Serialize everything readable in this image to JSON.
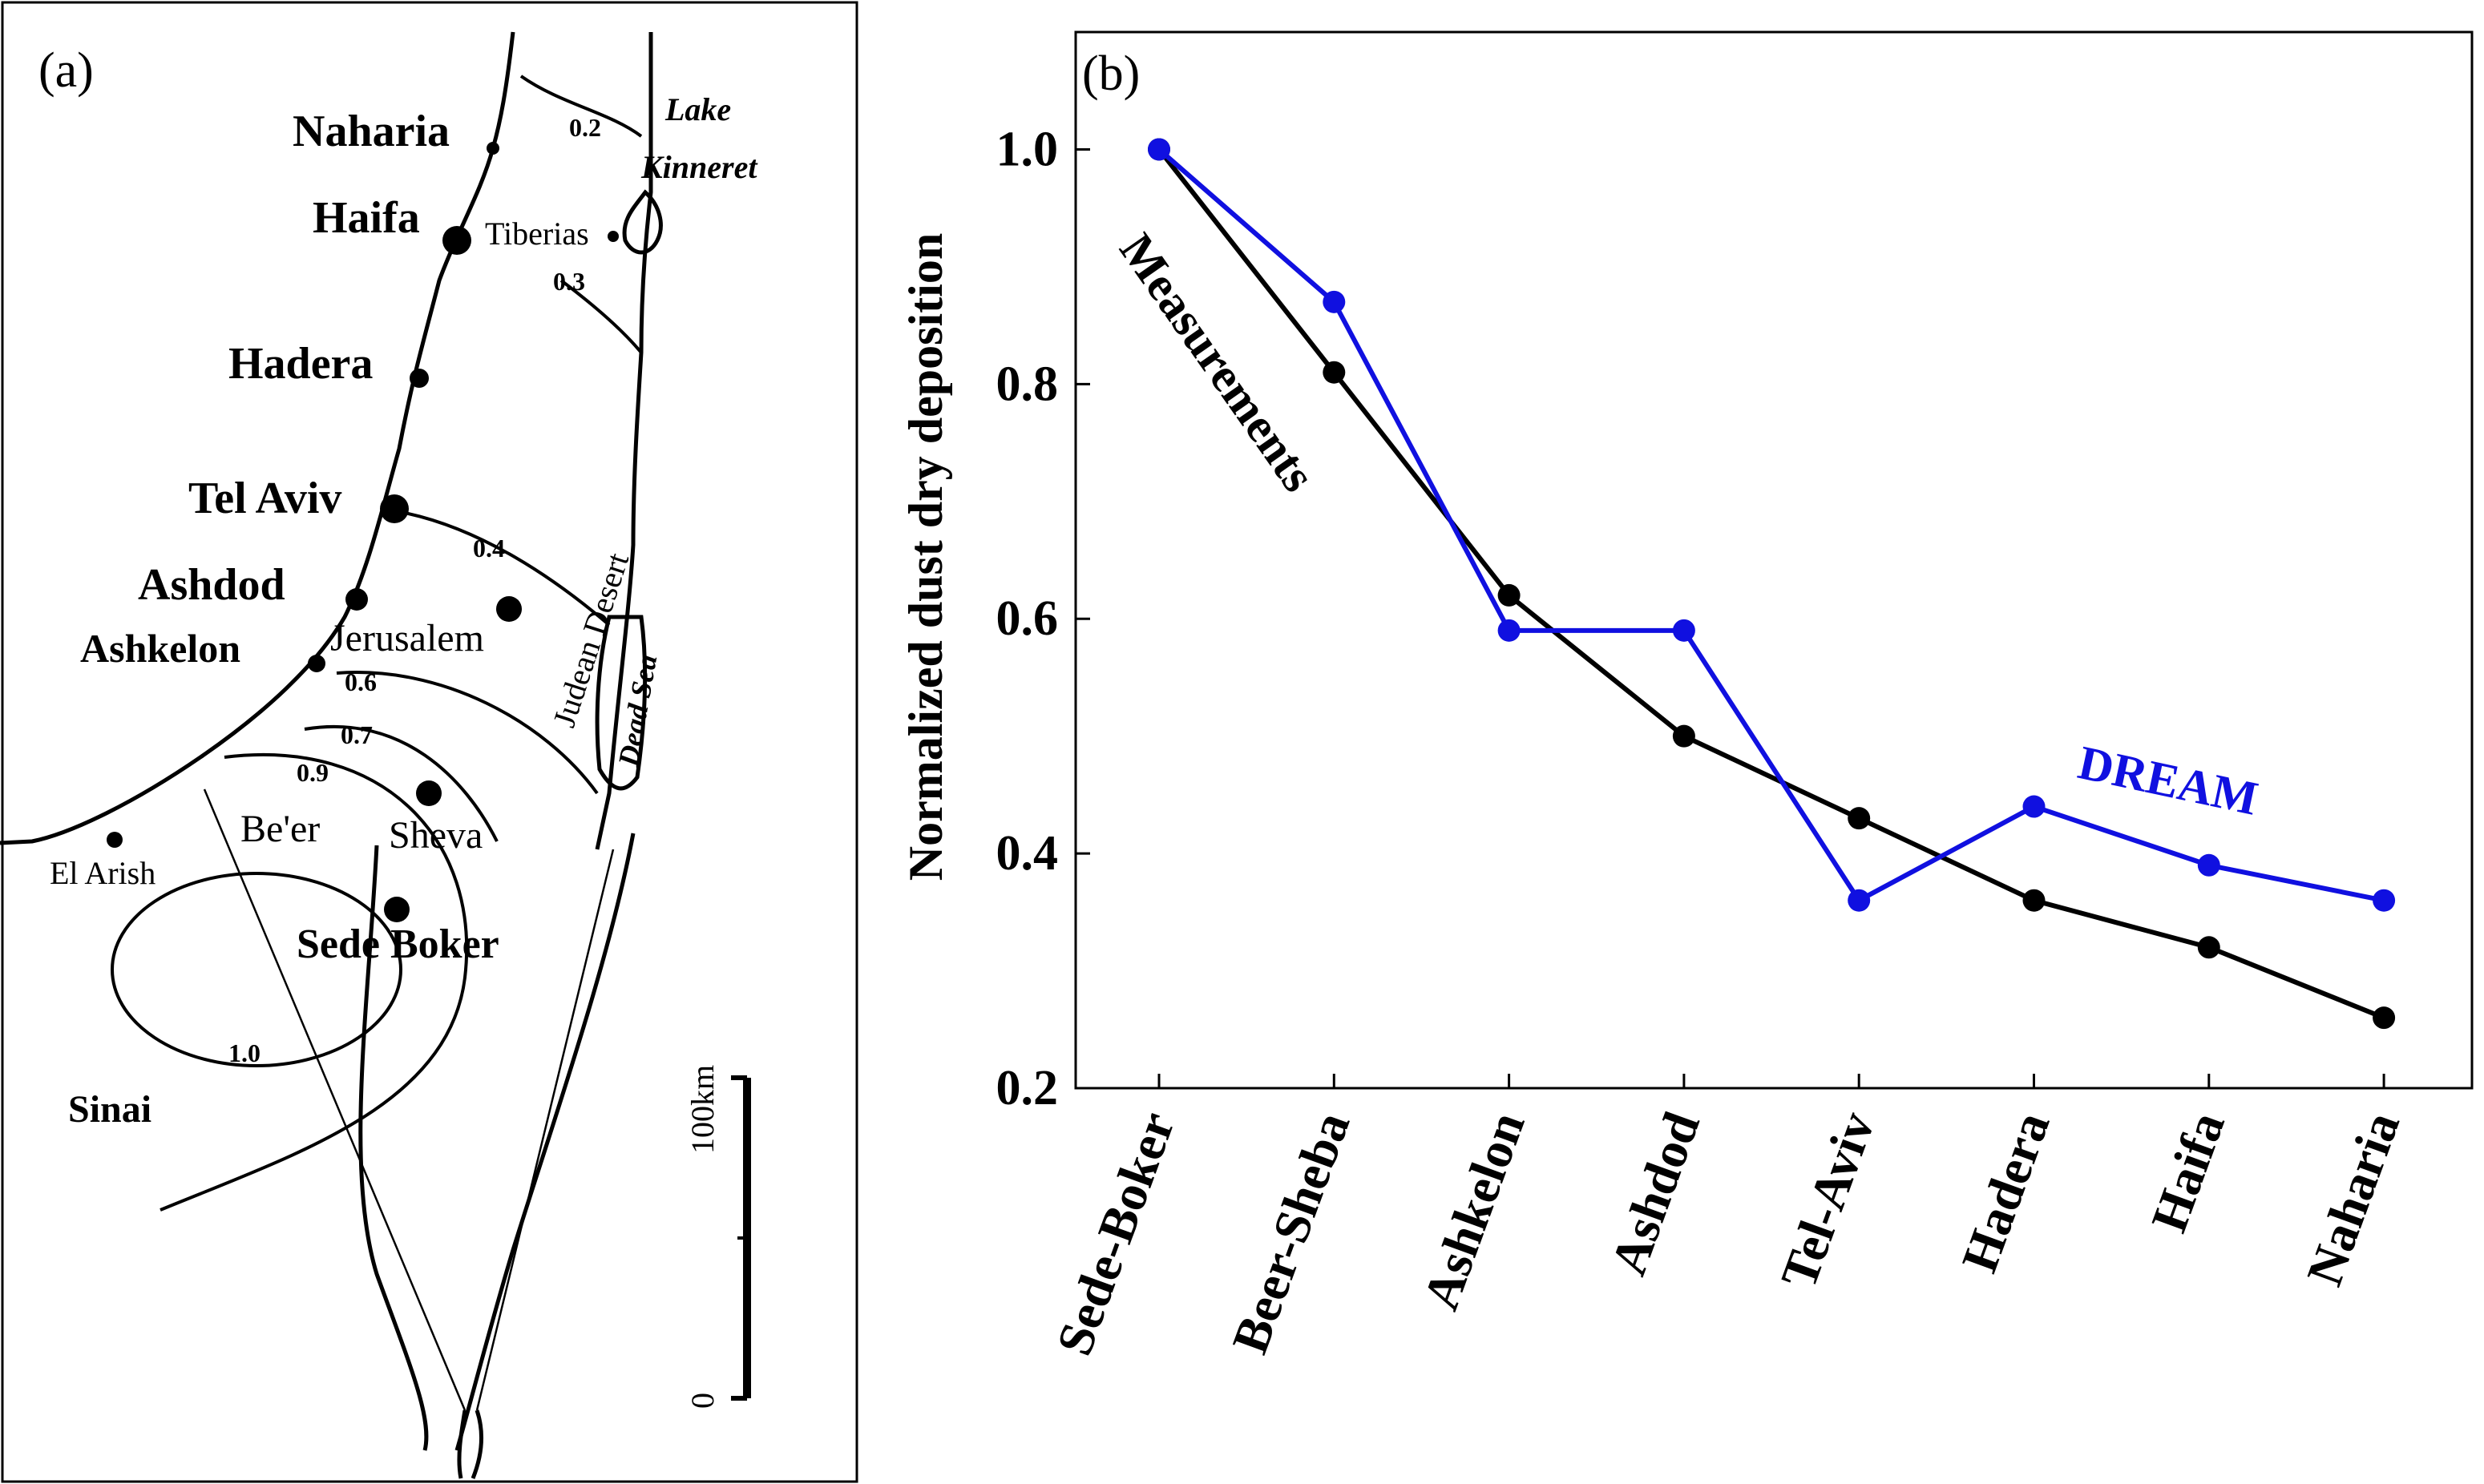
{
  "map": {
    "panel_label": "(a)",
    "cities": {
      "naharia": "Naharia",
      "haifa": "Haifa",
      "tiberias": "Tiberias",
      "hadera": "Hadera",
      "tel_aviv": "Tel Aviv",
      "ashdod": "Ashdod",
      "ashkelon": "Ashkelon",
      "jerusalem": "Jerusalem",
      "beer": "Be'er",
      "sheva": "Sheva",
      "sede_boker": "Sede Boker",
      "el_arish": "El Arish"
    },
    "water": {
      "lake": "Lake",
      "kinneret": "Kinneret",
      "dead_sea": "Dead Sea"
    },
    "regions": {
      "sinai": "Sinai",
      "judean_desert": "Judean Desert"
    },
    "isolines": {
      "v02": "0.2",
      "v03": "0.3",
      "v04": "0.4",
      "v06": "0.6",
      "v07": "0.7",
      "v09": "0.9",
      "v10": "1.0"
    },
    "scale": {
      "label_top": "100km",
      "label_bottom": "0"
    }
  },
  "chart_data": {
    "panel_label": "(b)",
    "type": "line",
    "categories": [
      "Sede-Boker",
      "Beer-Sheba",
      "Ashkelon",
      "Ashdod",
      "Tel-Aviv",
      "Hadera",
      "Haifa",
      "Naharia"
    ],
    "series": [
      {
        "name": "Measurements",
        "color": "#000000",
        "values": [
          1.0,
          0.81,
          0.62,
          0.5,
          0.43,
          0.36,
          0.32,
          0.26
        ]
      },
      {
        "name": "DREAM",
        "color": "#1010e0",
        "values": [
          1.0,
          0.87,
          0.59,
          0.59,
          0.36,
          0.44,
          0.39,
          0.36
        ]
      }
    ],
    "ylabel": "Normalized dust dry deposition",
    "xlabel": "",
    "ylim": [
      0.2,
      1.1
    ],
    "yticks": [
      0.2,
      0.4,
      0.6,
      0.8,
      1.0
    ],
    "ytick_labels": [
      "0.2",
      "0.4",
      "0.6",
      "0.8",
      "1.0"
    ]
  }
}
